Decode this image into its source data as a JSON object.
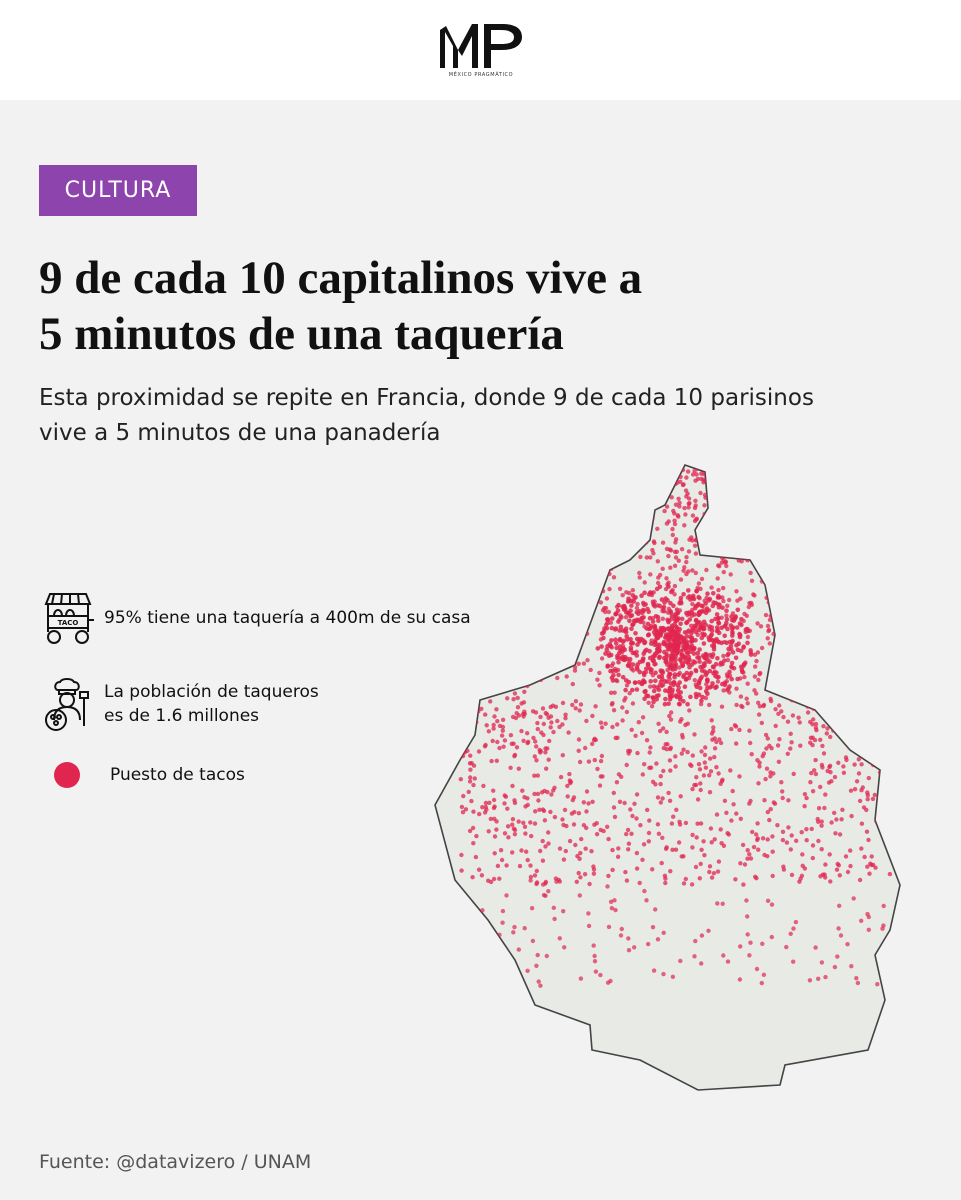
{
  "header": {
    "logo_name": "mp-logo",
    "logo_subtitle": "MÉXICO PRAGMÁTICO"
  },
  "category": "CULTURA",
  "headline": {
    "line1": "9 de cada 10 capitalinos vive a",
    "line2": "5 minutos de una taquería"
  },
  "subtitle": {
    "line1": "Esta proximidad se repite en Francia, donde 9 de cada 10 parisinos",
    "line2": "vive a 5 minutos de una panadería"
  },
  "legend": [
    {
      "icon": "taco-cart-icon",
      "text": "95% tiene una taquería a 400m de su casa"
    },
    {
      "icon": "taquero-chef-icon",
      "line1": "La población de taqueros",
      "line2": "es de 1.6 millones"
    },
    {
      "icon": "red-dot-icon",
      "text": "Puesto de tacos"
    }
  ],
  "colors": {
    "accent": "#8e44ad",
    "taco_dot": "#e0264f",
    "map_fill": "#e8eae6",
    "background": "#f2f2f2"
  },
  "source": "Fuente: @datavizero / UNAM"
}
